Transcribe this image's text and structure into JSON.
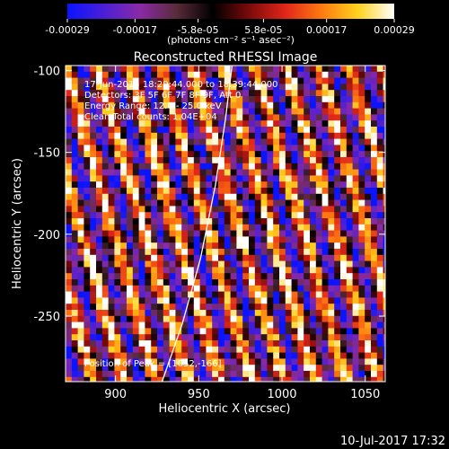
{
  "colors": {
    "background": "#000000",
    "foreground": "#ffffff",
    "colormap": [
      "#0a14ff",
      "#4a1fd6",
      "#8a2aa6",
      "#5a2b3a",
      "#000000",
      "#7a0a0a",
      "#e0261a",
      "#ff7a10",
      "#ffd21e",
      "#ffffff"
    ]
  },
  "chart_data": {
    "type": "heatmap",
    "title": "Reconstructed RHESSI Image",
    "xlabel": "Heliocentric X (arcsec)",
    "ylabel": "Heliocentric Y (arcsec)",
    "xlim": [
      870,
      1062
    ],
    "ylim": [
      -290,
      -97
    ],
    "xticks": [
      900,
      950,
      1000,
      1050
    ],
    "yticks": [
      -100,
      -150,
      -200,
      -250
    ],
    "colorbar": {
      "range": [
        -0.00029,
        0.00029
      ],
      "tick_values": [
        -0.00029,
        -0.00017,
        -5.8e-05,
        5.8e-05,
        0.00017,
        0.00029
      ],
      "tick_labels": [
        "-0.00029",
        "-0.00017",
        "-5.8e-05",
        "5.8e-05",
        "0.00017",
        "0.00029"
      ],
      "unit_label": "(photons cm⁻² s⁻¹ asec⁻²)"
    },
    "annotations": [
      "17-Jun-2015 18:29:44.000 to 18:39:44.000",
      "Detectors: 3F 5F 6F 7F 8F 9F, Att 0",
      "Energy Range: 12.0 - 25.0 keV",
      "Clean    Total counts: 1.04E+04"
    ],
    "peak_label": "Position of Peak = [1052,-166]",
    "peak_position": [
      1052,
      -166
    ],
    "limb_curve": [
      [
        928,
        -290
      ],
      [
        940,
        -255
      ],
      [
        951,
        -215
      ],
      [
        960,
        -170
      ],
      [
        966,
        -130
      ],
      [
        970,
        -97
      ]
    ],
    "pattern": {
      "description": "diagonal fringe pattern",
      "slope_dy_dx": -3.5,
      "period_x_arcsec": 19
    },
    "footer_timestamp": "10-Jul-2017 17:32"
  }
}
